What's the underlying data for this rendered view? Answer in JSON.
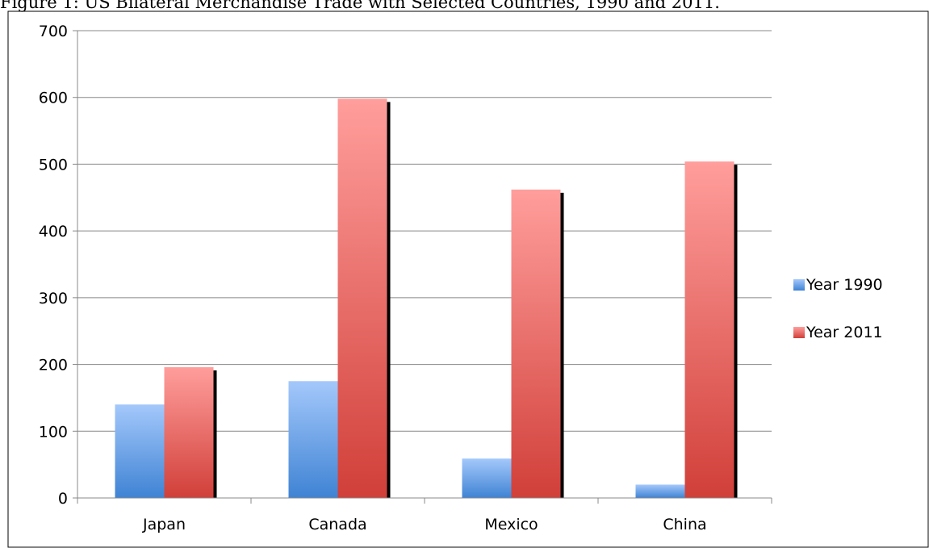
{
  "chart_data": {
    "type": "bar",
    "title": "Figure 1: US Bilateral Merchandise Trade with Selected Countries, 1990 and 2011.",
    "categories": [
      "Japan",
      "Canada",
      "Mexico",
      "China"
    ],
    "series": [
      {
        "name": "Year 1990",
        "values": [
          140,
          175,
          59,
          20
        ],
        "color": "#5b93dd"
      },
      {
        "name": "Year 2011",
        "values": [
          196,
          598,
          462,
          504
        ],
        "color": "#d9534f"
      }
    ],
    "ylim": [
      0,
      700
    ],
    "yticks": [
      "0",
      "100",
      "200",
      "300",
      "400",
      "500",
      "600",
      "700"
    ],
    "grid": true,
    "legend": "right",
    "xlabel": "",
    "ylabel": ""
  }
}
